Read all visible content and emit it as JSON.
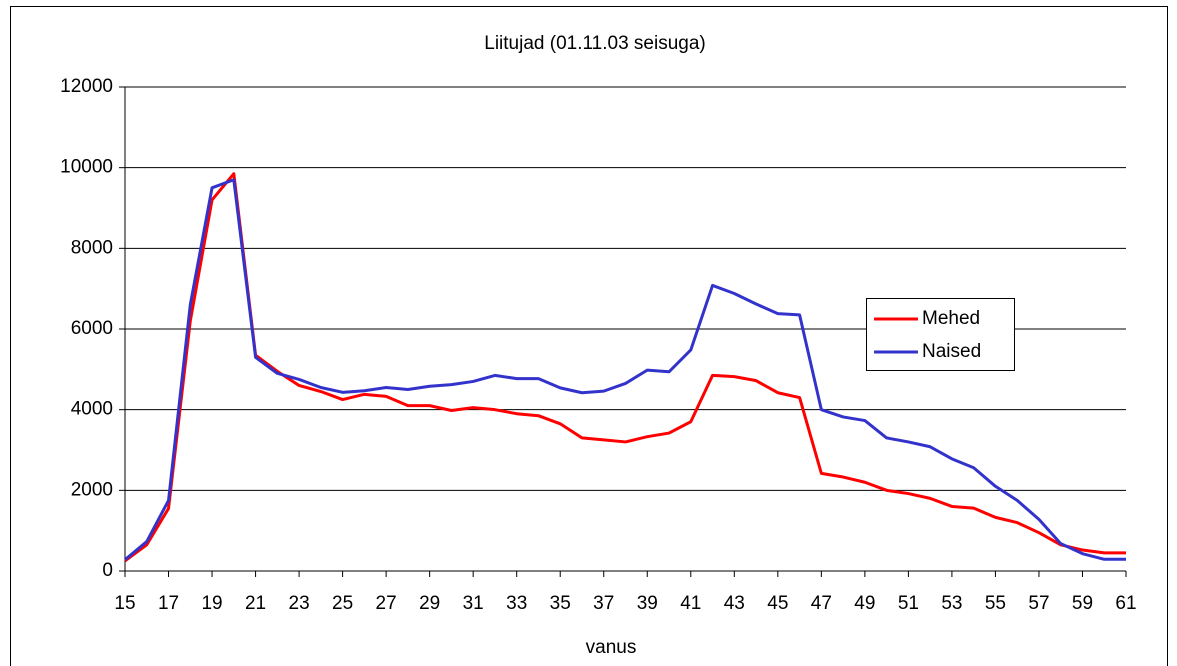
{
  "chart_data": {
    "type": "line",
    "title": "Liitujad (01.11.03 seisuga)",
    "x_label": "vanus",
    "x": [
      15,
      16,
      17,
      18,
      19,
      20,
      21,
      22,
      23,
      24,
      25,
      26,
      27,
      28,
      29,
      30,
      31,
      32,
      33,
      34,
      35,
      36,
      37,
      38,
      39,
      40,
      41,
      42,
      43,
      44,
      45,
      46,
      47,
      48,
      49,
      50,
      51,
      52,
      53,
      54,
      55,
      56,
      57,
      58,
      59,
      60,
      61
    ],
    "xlim": [
      15,
      61
    ],
    "xticks": [
      15,
      17,
      19,
      21,
      23,
      25,
      27,
      29,
      31,
      33,
      35,
      37,
      39,
      41,
      43,
      45,
      47,
      49,
      51,
      53,
      55,
      57,
      59,
      61
    ],
    "ylim": [
      0,
      12000
    ],
    "yticks": [
      0,
      2000,
      4000,
      6000,
      8000,
      10000,
      12000
    ],
    "grid": true,
    "legend": "right",
    "series": [
      {
        "name": "Mehed",
        "color": "#ff0000",
        "values": [
          250,
          650,
          1550,
          6200,
          9200,
          9850,
          5350,
          4950,
          4600,
          4450,
          4250,
          4380,
          4330,
          4100,
          4100,
          3980,
          4050,
          4000,
          3900,
          3850,
          3650,
          3300,
          3250,
          3200,
          3330,
          3420,
          3700,
          4850,
          4820,
          4720,
          4420,
          4300,
          2420,
          2330,
          2200,
          2000,
          1920,
          1800,
          1600,
          1560,
          1330,
          1200,
          950,
          650,
          520,
          450,
          450
        ]
      },
      {
        "name": "Naised",
        "color": "#3333cc",
        "values": [
          280,
          730,
          1750,
          6600,
          9500,
          9700,
          5300,
          4900,
          4750,
          4550,
          4430,
          4470,
          4550,
          4500,
          4580,
          4620,
          4700,
          4850,
          4770,
          4770,
          4540,
          4420,
          4460,
          4650,
          4980,
          4940,
          5480,
          7080,
          6880,
          6620,
          6380,
          6350,
          4000,
          3820,
          3730,
          3300,
          3200,
          3080,
          2780,
          2560,
          2100,
          1750,
          1280,
          680,
          430,
          290,
          290
        ]
      }
    ]
  }
}
